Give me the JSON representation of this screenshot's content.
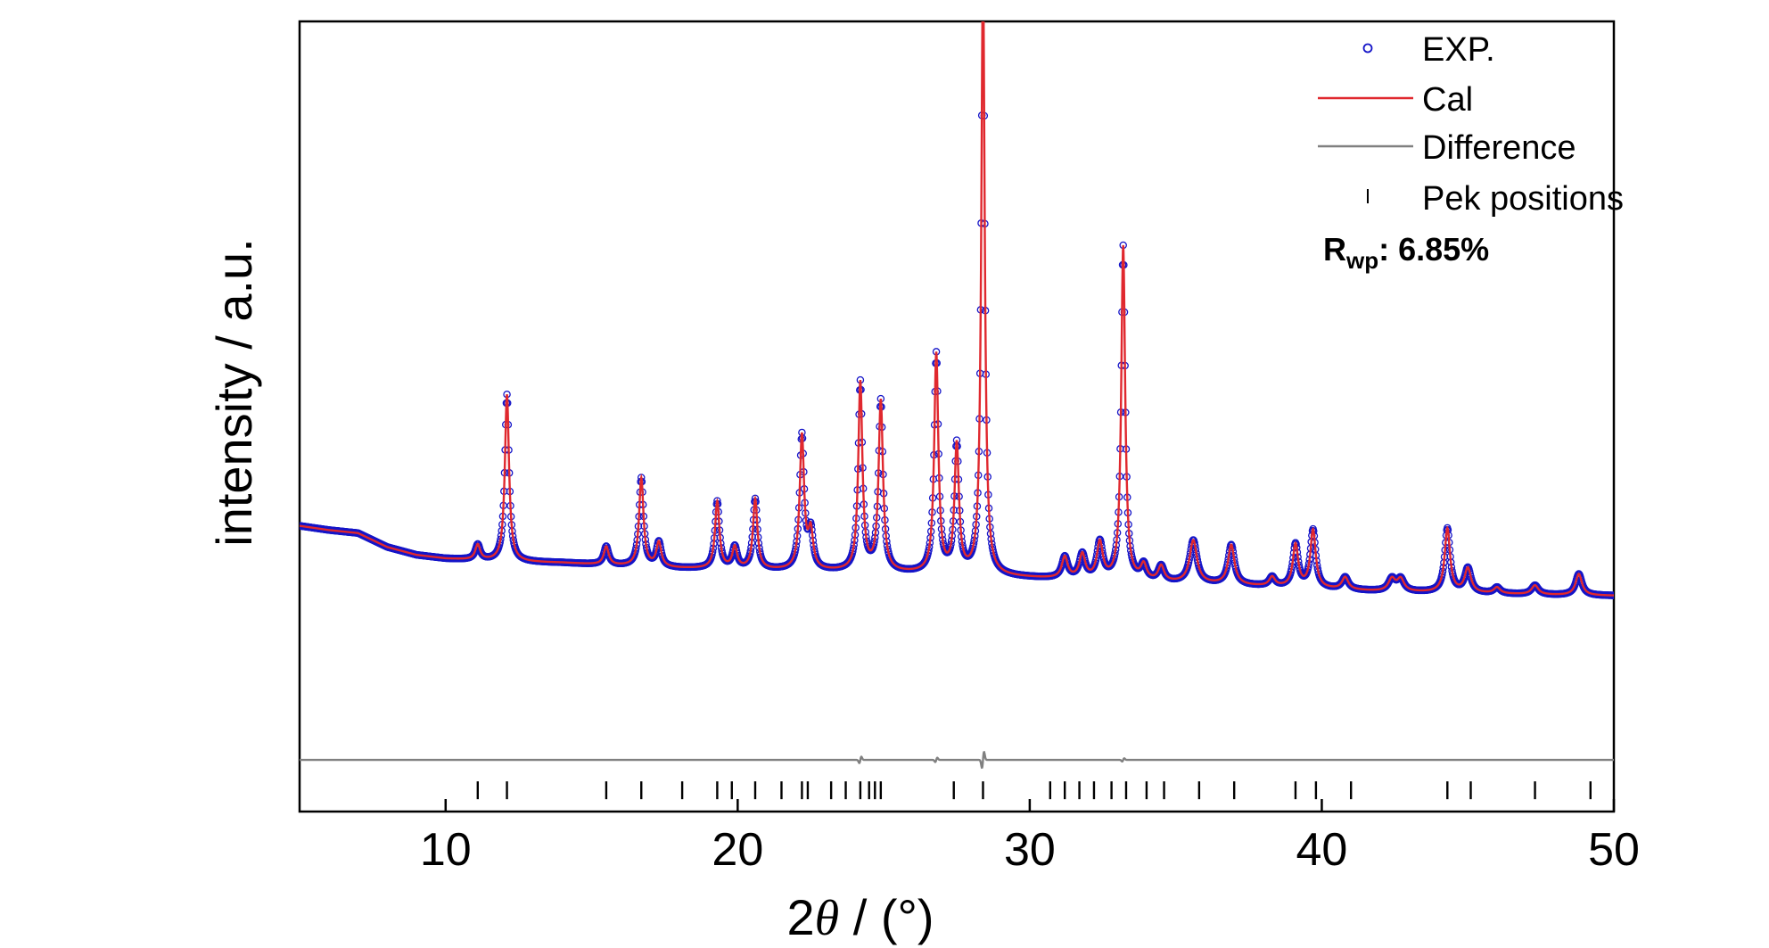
{
  "chart_data": {
    "type": "line",
    "xlabel": "2θ / (°)",
    "xlabel_parts": {
      "prefix": "2",
      "symbol": "θ",
      "suffix": " / (°)"
    },
    "ylabel": "intensity / a.u.",
    "xlim": [
      5,
      50
    ],
    "ylim": [
      -0.3,
      1.0
    ],
    "x_ticks": [
      10,
      20,
      30,
      40,
      50
    ],
    "x_tick_labels": [
      "10",
      "20",
      "30",
      "40",
      "50"
    ],
    "y_ticks_shown": false,
    "legend_position": "top-right",
    "baseline": {
      "x": [
        5,
        6,
        7,
        8,
        9,
        10,
        12,
        14,
        16,
        18,
        20,
        22,
        24,
        26,
        28,
        30,
        32,
        34,
        36,
        38,
        40,
        42,
        44,
        46,
        48,
        50
      ],
      "y": [
        0.17,
        0.163,
        0.158,
        0.135,
        0.122,
        0.116,
        0.111,
        0.109,
        0.104,
        0.1,
        0.098,
        0.096,
        0.094,
        0.091,
        0.088,
        0.084,
        0.08,
        0.077,
        0.074,
        0.07,
        0.066,
        0.062,
        0.06,
        0.058,
        0.056,
        0.055
      ]
    },
    "peaks": [
      {
        "x": 11.1,
        "h": 0.025,
        "w": 0.1
      },
      {
        "x": 12.1,
        "h": 0.275,
        "w": 0.085
      },
      {
        "x": 15.5,
        "h": 0.03,
        "w": 0.1
      },
      {
        "x": 16.7,
        "h": 0.145,
        "w": 0.09
      },
      {
        "x": 17.3,
        "h": 0.04,
        "w": 0.1
      },
      {
        "x": 19.3,
        "h": 0.11,
        "w": 0.09
      },
      {
        "x": 19.9,
        "h": 0.035,
        "w": 0.1
      },
      {
        "x": 20.6,
        "h": 0.115,
        "w": 0.09
      },
      {
        "x": 22.2,
        "h": 0.22,
        "w": 0.09
      },
      {
        "x": 22.5,
        "h": 0.06,
        "w": 0.1
      },
      {
        "x": 24.2,
        "h": 0.31,
        "w": 0.085
      },
      {
        "x": 24.9,
        "h": 0.28,
        "w": 0.09
      },
      {
        "x": 26.8,
        "h": 0.36,
        "w": 0.085
      },
      {
        "x": 27.5,
        "h": 0.21,
        "w": 0.09
      },
      {
        "x": 28.4,
        "h": 1.0,
        "w": 0.07
      },
      {
        "x": 31.2,
        "h": 0.035,
        "w": 0.12
      },
      {
        "x": 31.8,
        "h": 0.04,
        "w": 0.12
      },
      {
        "x": 32.4,
        "h": 0.06,
        "w": 0.12
      },
      {
        "x": 33.2,
        "h": 0.55,
        "w": 0.08
      },
      {
        "x": 33.9,
        "h": 0.025,
        "w": 0.12
      },
      {
        "x": 34.5,
        "h": 0.025,
        "w": 0.12
      },
      {
        "x": 35.6,
        "h": 0.07,
        "w": 0.15
      },
      {
        "x": 36.9,
        "h": 0.065,
        "w": 0.13
      },
      {
        "x": 38.3,
        "h": 0.015,
        "w": 0.12
      },
      {
        "x": 39.1,
        "h": 0.07,
        "w": 0.11
      },
      {
        "x": 39.7,
        "h": 0.095,
        "w": 0.11
      },
      {
        "x": 40.8,
        "h": 0.02,
        "w": 0.13
      },
      {
        "x": 42.4,
        "h": 0.02,
        "w": 0.14
      },
      {
        "x": 42.7,
        "h": 0.02,
        "w": 0.14
      },
      {
        "x": 44.3,
        "h": 0.105,
        "w": 0.11
      },
      {
        "x": 45.0,
        "h": 0.04,
        "w": 0.13
      },
      {
        "x": 46.0,
        "h": 0.01,
        "w": 0.13
      },
      {
        "x": 47.3,
        "h": 0.015,
        "w": 0.14
      },
      {
        "x": 48.8,
        "h": 0.035,
        "w": 0.13
      }
    ],
    "difference": {
      "offset": -0.215,
      "spikes": [
        {
          "x": 24.2,
          "a": 0.012
        },
        {
          "x": 26.8,
          "a": 0.008
        },
        {
          "x": 28.4,
          "a": 0.03
        },
        {
          "x": 33.2,
          "a": 0.006
        }
      ]
    },
    "peak_positions": {
      "y": -0.265,
      "x": [
        11.1,
        12.1,
        15.5,
        16.7,
        18.1,
        19.3,
        19.8,
        20.6,
        21.5,
        22.2,
        22.4,
        23.2,
        23.7,
        24.2,
        24.5,
        24.7,
        24.9,
        27.4,
        28.4,
        30.7,
        31.2,
        31.7,
        32.2,
        32.8,
        33.3,
        34.0,
        34.6,
        35.8,
        37.0,
        39.1,
        39.8,
        41.0,
        44.3,
        45.1,
        47.3,
        49.2
      ]
    },
    "series": [
      {
        "name": "EXP.",
        "style": "circles",
        "color": "#1515c8"
      },
      {
        "name": "Cal",
        "style": "line",
        "color": "#e0282e"
      },
      {
        "name": "Difference",
        "style": "line",
        "color": "#808080"
      },
      {
        "name": "Pek positions",
        "style": "ticks",
        "color": "#000000"
      }
    ],
    "annotation": {
      "label": "R",
      "subscript": "wp",
      "value": ": 6.85%"
    }
  }
}
